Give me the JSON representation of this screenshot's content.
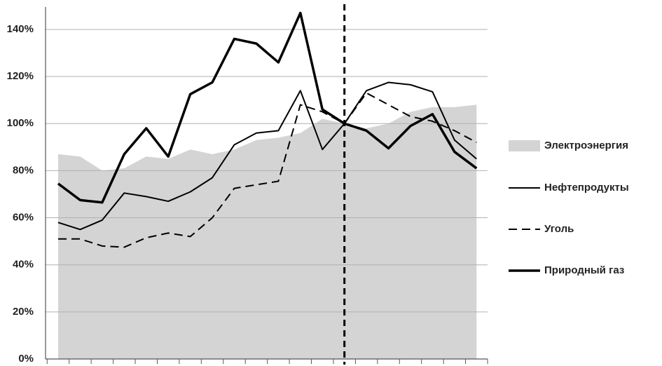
{
  "chart_data": {
    "type": "line",
    "categories": [
      null,
      null,
      null,
      null,
      null,
      null,
      null,
      null,
      null,
      null,
      null,
      null,
      null,
      null,
      null,
      null,
      null,
      null,
      null,
      null
    ],
    "ylim": [
      0,
      150
    ],
    "yticks": [
      {
        "value": 0,
        "label": "0%"
      },
      {
        "value": 20,
        "label": "20%"
      },
      {
        "value": 40,
        "label": "40%"
      },
      {
        "value": 60,
        "label": "60%"
      },
      {
        "value": 80,
        "label": "80%"
      },
      {
        "value": 100,
        "label": "100%"
      },
      {
        "value": 120,
        "label": "120%"
      },
      {
        "value": 140,
        "label": "140%"
      }
    ],
    "grid": true,
    "legend": "right",
    "divider_index": 13,
    "series": [
      {
        "name": "Электроэнергия",
        "style": "area",
        "color": "#d4d4d4",
        "values": [
          87,
          86,
          80,
          81,
          86,
          85,
          89,
          87,
          89,
          93,
          94,
          96,
          102,
          100,
          98,
          100,
          105,
          107,
          107,
          108
        ]
      },
      {
        "name": "Нефтепродукты",
        "style": "solid",
        "color": "#000000",
        "values": [
          58,
          55,
          59,
          70.5,
          69,
          67,
          71,
          77,
          91,
          96,
          97,
          114,
          89,
          100,
          114,
          117.5,
          116.5,
          113.5,
          93,
          85
        ]
      },
      {
        "name": "Уголь",
        "style": "dashed",
        "color": "#000000",
        "values": [
          51,
          51,
          48,
          47.5,
          51.5,
          53.5,
          52,
          60,
          72.5,
          74,
          75.5,
          108,
          105,
          100,
          113,
          108,
          103,
          101,
          97,
          92
        ]
      },
      {
        "name": "Природный газ",
        "style": "thick",
        "color": "#000000",
        "values": [
          74.5,
          67.5,
          66.5,
          87,
          98,
          86,
          112.5,
          117.5,
          136,
          134,
          126,
          147,
          106,
          100,
          97,
          89.5,
          99,
          104,
          88,
          81
        ]
      }
    ]
  }
}
